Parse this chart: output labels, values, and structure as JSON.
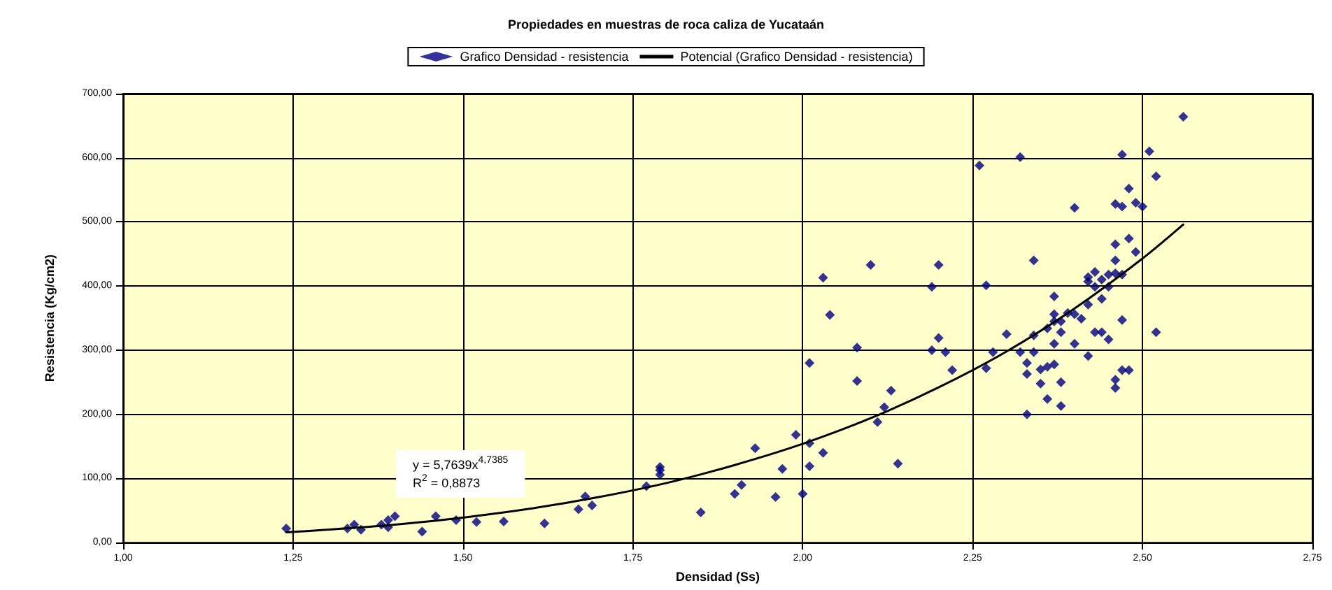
{
  "chart_data": {
    "type": "scatter",
    "title": "Propiedades en muestras de roca caliza de Yucataán",
    "xlabel": "Densidad (Ss)",
    "ylabel": "Resistencia (Kg/cm2)",
    "annotations": [
      "y = 5,7639x$^{4,7385}$",
      "R$^{2}$ = 0,8873"
    ],
    "xlim": [
      1.0,
      2.75
    ],
    "ylim": [
      0,
      700
    ],
    "xticks": [
      {
        "value": 1.0,
        "label": "1,00"
      },
      {
        "value": 1.25,
        "label": "1,25"
      },
      {
        "value": 1.5,
        "label": "1,50"
      },
      {
        "value": 1.75,
        "label": "1,75"
      },
      {
        "value": 2.0,
        "label": "2,00"
      },
      {
        "value": 2.25,
        "label": "2,25"
      },
      {
        "value": 2.5,
        "label": "2,50"
      },
      {
        "value": 2.75,
        "label": "2,75"
      }
    ],
    "yticks": [
      {
        "value": 0,
        "label": "0,00"
      },
      {
        "value": 100,
        "label": "100,00"
      },
      {
        "value": 200,
        "label": "200,00"
      },
      {
        "value": 300,
        "label": "300,00"
      },
      {
        "value": 400,
        "label": "400,00"
      },
      {
        "value": 500,
        "label": "500,00"
      },
      {
        "value": 600,
        "label": "600,00"
      },
      {
        "value": 700,
        "label": "700,00"
      }
    ],
    "grid": true,
    "legend": "top",
    "marker": "diamond",
    "series": [
      {
        "name": "Grafico Densidad - resistencia",
        "color": "#000080",
        "x": [
          1.24,
          1.33,
          1.34,
          1.35,
          1.38,
          1.39,
          1.39,
          1.4,
          1.44,
          1.46,
          1.49,
          1.52,
          1.56,
          1.62,
          1.67,
          1.68,
          1.69,
          1.77,
          1.79,
          1.79,
          1.79,
          1.85,
          1.9,
          1.91,
          1.93,
          1.97,
          1.96,
          1.99,
          2.0,
          2.01,
          2.01,
          2.03,
          2.01,
          2.03,
          2.04,
          2.08,
          2.08,
          2.1,
          2.11,
          2.12,
          2.13,
          2.14,
          2.19,
          2.2,
          2.19,
          2.2,
          2.21,
          2.22,
          2.27,
          2.27,
          2.28,
          2.3,
          2.32,
          2.33,
          2.33,
          2.34,
          2.34,
          2.34,
          2.33,
          2.35,
          2.36,
          2.36,
          2.37,
          2.38,
          2.38,
          2.37,
          2.36,
          2.37,
          2.37,
          2.38,
          2.38,
          2.26,
          2.32,
          2.35,
          2.37,
          2.39,
          2.4,
          2.4,
          2.4,
          2.41,
          2.42,
          2.42,
          2.42,
          2.42,
          2.43,
          2.43,
          2.43,
          2.44,
          2.44,
          2.44,
          2.45,
          2.45,
          2.45,
          2.46,
          2.46,
          2.46,
          2.46,
          2.46,
          2.46,
          2.47,
          2.47,
          2.47,
          2.47,
          2.47,
          2.48,
          2.48,
          2.48,
          2.49,
          2.49,
          2.5,
          2.51,
          2.52,
          2.52,
          2.56
        ],
        "values": [
          22,
          22,
          28,
          20,
          28,
          35,
          24,
          41,
          17,
          41,
          35,
          32,
          33,
          30,
          52,
          72,
          58,
          88,
          118,
          113,
          106,
          47,
          76,
          90,
          147,
          115,
          71,
          168,
          76,
          119,
          155,
          140,
          280,
          413,
          355,
          304,
          252,
          433,
          188,
          211,
          237,
          123,
          399,
          433,
          300,
          319,
          297,
          269,
          401,
          272,
          297,
          325,
          297,
          280,
          263,
          297,
          323,
          440,
          200,
          248,
          224,
          274,
          278,
          250,
          213,
          310,
          334,
          384,
          356,
          345,
          328,
          588,
          601,
          270,
          345,
          358,
          356,
          522,
          310,
          349,
          371,
          291,
          414,
          407,
          422,
          399,
          328,
          328,
          410,
          380,
          399,
          418,
          317,
          440,
          465,
          528,
          420,
          254,
          241,
          524,
          605,
          418,
          347,
          269,
          552,
          474,
          269,
          530,
          453,
          524,
          610,
          571,
          328,
          664
        ]
      },
      {
        "name": "Potencial (Grafico Densidad - resistencia)",
        "color": "#000000",
        "type": "line",
        "marker": "none",
        "line_style": "solid",
        "x": [
          1.24,
          1.3,
          1.4,
          1.5,
          1.6,
          1.7,
          1.8,
          1.9,
          2.0,
          2.1,
          2.2,
          2.3,
          2.4,
          2.5,
          2.56
        ],
        "values": [
          16,
          20,
          28,
          39,
          53,
          71,
          93,
          121,
          154,
          194,
          242,
          298,
          365,
          443,
          496
        ]
      }
    ]
  }
}
